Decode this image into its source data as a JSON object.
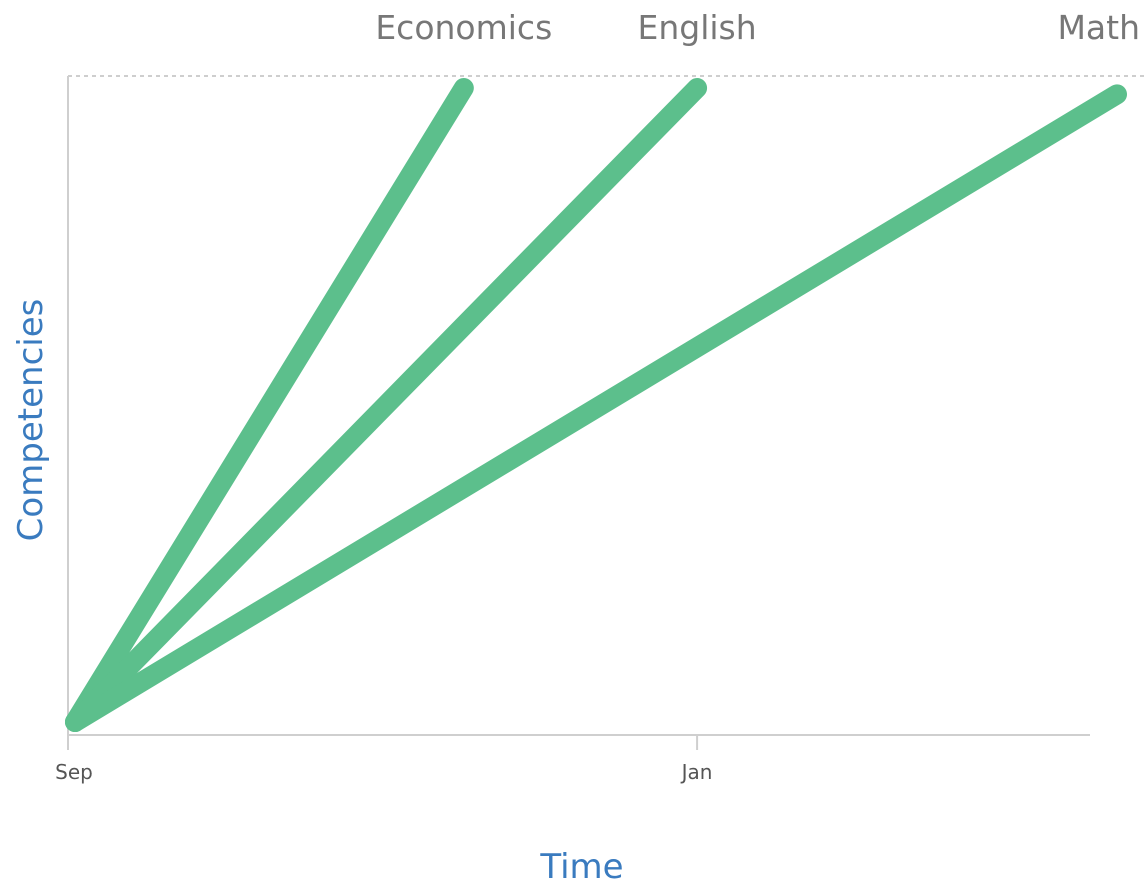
{
  "chart_data": {
    "type": "line",
    "title": "",
    "xlabel": "Time",
    "ylabel": "Competencies",
    "x_ticks": [
      "Sep",
      "Jan"
    ],
    "x_tick_values": [
      0,
      4
    ],
    "xlim": [
      0,
      6.7
    ],
    "ylim": [
      0,
      1
    ],
    "top_reference_line": "dashed",
    "grid": false,
    "legend": "labels at line ends",
    "colors": {
      "series": "#5cbf8c",
      "axis_title": "#3a7bbf",
      "series_label": "#777777",
      "tick_label": "#555555",
      "axis": "#cfcfcf"
    },
    "series": [
      {
        "name": "Economics",
        "x": [
          0,
          2.5
        ],
        "y": [
          0,
          1
        ]
      },
      {
        "name": "English",
        "x": [
          0,
          4.0
        ],
        "y": [
          0,
          1
        ]
      },
      {
        "name": "Math",
        "x": [
          0,
          6.7
        ],
        "y": [
          0,
          0.99
        ]
      }
    ]
  }
}
